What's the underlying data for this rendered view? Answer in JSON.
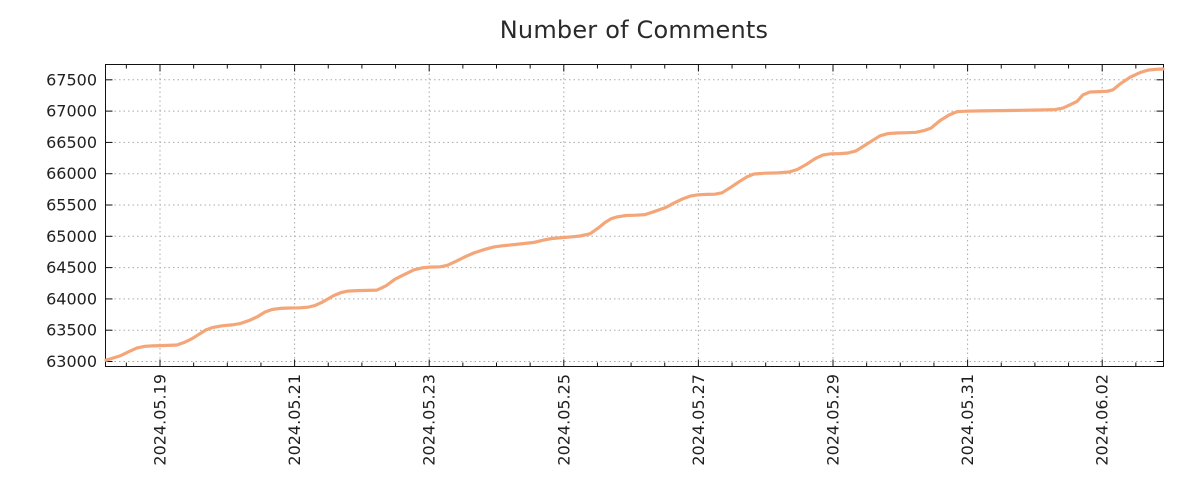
{
  "chart_data": {
    "type": "line",
    "title": "Number of Comments",
    "colors": {
      "line": "#f4a679",
      "grid": "#a9a9a9",
      "frame": "#111111",
      "tick": "#111111",
      "label": "#1f1f1f",
      "title": "#2a2a2a",
      "background": "#ffffff"
    },
    "x_axis": {
      "day_zero_date": "2024.05.18",
      "unit": "days",
      "range": [
        0.198,
        15.903
      ],
      "major_ticks": [
        {
          "day": 1,
          "label": "2024.05.19"
        },
        {
          "day": 3,
          "label": "2024.05.21"
        },
        {
          "day": 5,
          "label": "2024.05.23"
        },
        {
          "day": 7,
          "label": "2024.05.25"
        },
        {
          "day": 9,
          "label": "2024.05.27"
        },
        {
          "day": 11,
          "label": "2024.05.29"
        },
        {
          "day": 13,
          "label": "2024.05.31"
        },
        {
          "day": 15,
          "label": "2024.06.02"
        }
      ],
      "minor_tick_step_days": 0.5,
      "grid": "dotted",
      "label_rotation_deg": -90
    },
    "y_axis": {
      "range": [
        62904,
        67744
      ],
      "ticks": [
        63000,
        63500,
        64000,
        64500,
        65000,
        65500,
        66000,
        66500,
        67000,
        67500
      ],
      "grid": "dotted"
    },
    "series": [
      {
        "name": "comments",
        "color": "#f4a679",
        "points": [
          [
            0.198,
            63020
          ],
          [
            0.287,
            63050
          ],
          [
            0.406,
            63090
          ],
          [
            0.525,
            63150
          ],
          [
            0.658,
            63218
          ],
          [
            0.777,
            63243
          ],
          [
            0.881,
            63250
          ],
          [
            1.074,
            63256
          ],
          [
            1.253,
            63264
          ],
          [
            1.372,
            63310
          ],
          [
            1.476,
            63365
          ],
          [
            1.58,
            63435
          ],
          [
            1.684,
            63505
          ],
          [
            1.788,
            63545
          ],
          [
            1.921,
            63570
          ],
          [
            2.07,
            63585
          ],
          [
            2.189,
            63605
          ],
          [
            2.337,
            63660
          ],
          [
            2.456,
            63720
          ],
          [
            2.56,
            63790
          ],
          [
            2.664,
            63830
          ],
          [
            2.783,
            63848
          ],
          [
            2.932,
            63855
          ],
          [
            3.08,
            63858
          ],
          [
            3.199,
            63868
          ],
          [
            3.303,
            63895
          ],
          [
            3.407,
            63945
          ],
          [
            3.497,
            64000
          ],
          [
            3.586,
            64055
          ],
          [
            3.69,
            64100
          ],
          [
            3.794,
            64125
          ],
          [
            3.927,
            64133
          ],
          [
            4.091,
            64136
          ],
          [
            4.225,
            64140
          ],
          [
            4.358,
            64210
          ],
          [
            4.492,
            64315
          ],
          [
            4.641,
            64395
          ],
          [
            4.774,
            64465
          ],
          [
            4.893,
            64495
          ],
          [
            5.012,
            64508
          ],
          [
            5.161,
            64513
          ],
          [
            5.265,
            64535
          ],
          [
            5.398,
            64600
          ],
          [
            5.532,
            64672
          ],
          [
            5.666,
            64735
          ],
          [
            5.814,
            64788
          ],
          [
            5.963,
            64830
          ],
          [
            6.112,
            64852
          ],
          [
            6.26,
            64868
          ],
          [
            6.409,
            64885
          ],
          [
            6.557,
            64903
          ],
          [
            6.691,
            64938
          ],
          [
            6.825,
            64965
          ],
          [
            6.973,
            64980
          ],
          [
            7.122,
            64992
          ],
          [
            7.241,
            65005
          ],
          [
            7.389,
            65040
          ],
          [
            7.508,
            65130
          ],
          [
            7.612,
            65220
          ],
          [
            7.701,
            65280
          ],
          [
            7.79,
            65310
          ],
          [
            7.924,
            65332
          ],
          [
            8.073,
            65337
          ],
          [
            8.206,
            65347
          ],
          [
            8.355,
            65400
          ],
          [
            8.504,
            65455
          ],
          [
            8.637,
            65530
          ],
          [
            8.771,
            65600
          ],
          [
            8.89,
            65645
          ],
          [
            8.994,
            65663
          ],
          [
            9.127,
            65670
          ],
          [
            9.246,
            65673
          ],
          [
            9.35,
            65695
          ],
          [
            9.469,
            65775
          ],
          [
            9.603,
            65870
          ],
          [
            9.722,
            65950
          ],
          [
            9.826,
            65995
          ],
          [
            9.989,
            66008
          ],
          [
            10.182,
            66013
          ],
          [
            10.346,
            66028
          ],
          [
            10.465,
            66065
          ],
          [
            10.599,
            66145
          ],
          [
            10.732,
            66240
          ],
          [
            10.851,
            66300
          ],
          [
            10.97,
            66318
          ],
          [
            11.104,
            66322
          ],
          [
            11.223,
            66330
          ],
          [
            11.342,
            66365
          ],
          [
            11.46,
            66445
          ],
          [
            11.579,
            66525
          ],
          [
            11.698,
            66605
          ],
          [
            11.817,
            66640
          ],
          [
            11.951,
            66650
          ],
          [
            12.099,
            66655
          ],
          [
            12.233,
            66662
          ],
          [
            12.352,
            66688
          ],
          [
            12.456,
            66728
          ],
          [
            12.59,
            66848
          ],
          [
            12.723,
            66938
          ],
          [
            12.842,
            66990
          ],
          [
            12.976,
            66998
          ],
          [
            13.184,
            67003
          ],
          [
            13.481,
            67008
          ],
          [
            13.778,
            67013
          ],
          [
            14.075,
            67018
          ],
          [
            14.298,
            67024
          ],
          [
            14.417,
            67048
          ],
          [
            14.521,
            67100
          ],
          [
            14.625,
            67155
          ],
          [
            14.714,
            67260
          ],
          [
            14.818,
            67305
          ],
          [
            14.967,
            67312
          ],
          [
            15.071,
            67316
          ],
          [
            15.16,
            67340
          ],
          [
            15.279,
            67445
          ],
          [
            15.413,
            67540
          ],
          [
            15.561,
            67615
          ],
          [
            15.68,
            67655
          ],
          [
            15.799,
            67668
          ],
          [
            15.903,
            67672
          ]
        ]
      }
    ],
    "legend": null
  }
}
